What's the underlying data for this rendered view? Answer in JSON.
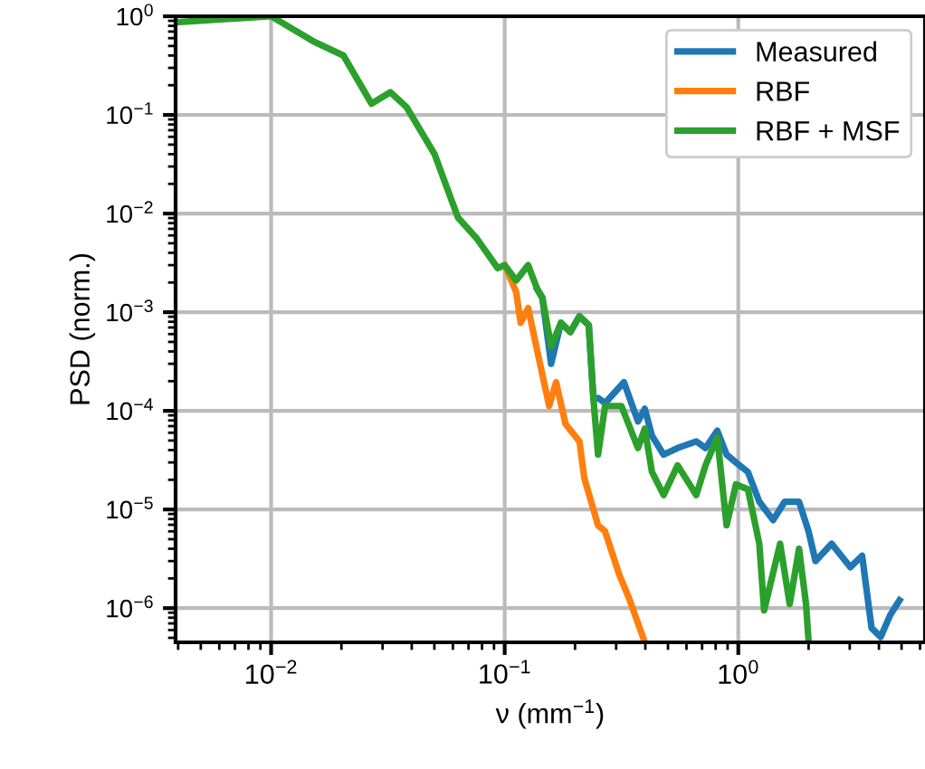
{
  "chart_data": {
    "type": "line",
    "xlabel": "ν (mm$^{−1}$)",
    "ylabel": "PSD (norm.)",
    "log": "xy",
    "grid": true,
    "legend": "top right",
    "xlim": [
      0.0039,
      6.3
    ],
    "ylim": [
      4.5e-07,
      1
    ],
    "xticks": [
      {
        "value": 0.01,
        "label": "10$^{−2}$"
      },
      {
        "value": 0.1,
        "label": "10$^{−1}$"
      },
      {
        "value": 1,
        "label": "10$^{0}$"
      }
    ],
    "yticks": [
      {
        "value": 1e-06,
        "label": "10$^{−6}$"
      },
      {
        "value": 1e-05,
        "label": "10$^{−5}$"
      },
      {
        "value": 0.0001,
        "label": "10$^{−4}$"
      },
      {
        "value": 0.001,
        "label": "10$^{−3}$"
      },
      {
        "value": 0.01,
        "label": "10$^{−2}$"
      },
      {
        "value": 0.1,
        "label": "10$^{−1}$"
      },
      {
        "value": 1,
        "label": "10$^{0}$"
      }
    ],
    "series": [
      {
        "name": "Measured",
        "color": "#1f77b4",
        "x": [
          0.138,
          0.145,
          0.158,
          0.174,
          0.191,
          0.209,
          0.229,
          0.24,
          0.251,
          0.269,
          0.324,
          0.372,
          0.398,
          0.427,
          0.479,
          0.55,
          0.661,
          0.724,
          0.813,
          0.891,
          0.977,
          1.1,
          1.23,
          1.41,
          1.58,
          1.82,
          2.0,
          2.14,
          2.51,
          3.02,
          3.39,
          3.72,
          4.07,
          4.47,
          4.9
        ],
        "values": [
          0.0017,
          0.0014,
          0.0003,
          0.00078,
          0.00063,
          0.00091,
          0.00074,
          0.00013,
          0.000135,
          0.00012,
          0.000195,
          7.8e-05,
          0.000105,
          5.6e-05,
          3.6e-05,
          4.2e-05,
          4.9e-05,
          4.2e-05,
          6.3e-05,
          3.6e-05,
          3e-05,
          2.4e-05,
          1.2e-05,
          7.8e-06,
          1.2e-05,
          1.2e-05,
          6e-06,
          3e-06,
          4.5e-06,
          2.6e-06,
          3.4e-06,
          6.3e-07,
          5.1e-07,
          8.5e-07,
          1.2e-06
        ]
      },
      {
        "name": "RBF",
        "color": "#ff7f0e",
        "x": [
          0.1,
          0.112,
          0.117,
          0.126,
          0.138,
          0.155,
          0.166,
          0.182,
          0.209,
          0.219,
          0.251,
          0.269,
          0.309,
          0.339,
          0.398
        ],
        "values": [
          0.003,
          0.0016,
          0.00078,
          0.0011,
          0.0004,
          0.000112,
          0.000195,
          7.4e-05,
          4.9e-05,
          2.1e-05,
          6.9e-06,
          6e-06,
          2.2e-06,
          1.3e-06,
          4.5e-07
        ]
      },
      {
        "name": "RBF + MSF",
        "color": "#2ca02c",
        "x": [
          0.0039,
          0.01,
          0.0151,
          0.0204,
          0.0269,
          0.0324,
          0.038,
          0.0501,
          0.0631,
          0.0759,
          0.0933,
          0.1,
          0.112,
          0.126,
          0.138,
          0.145,
          0.158,
          0.174,
          0.191,
          0.209,
          0.229,
          0.24,
          0.251,
          0.269,
          0.316,
          0.372,
          0.398,
          0.427,
          0.479,
          0.55,
          0.661,
          0.724,
          0.813,
          0.891,
          0.977,
          1.1,
          1.23,
          1.29,
          1.51,
          1.66,
          1.82,
          1.95,
          2.0
        ],
        "values": [
          0.87,
          1,
          0.56,
          0.4,
          0.13,
          0.17,
          0.12,
          0.04,
          0.0091,
          0.0056,
          0.0028,
          0.003,
          0.0021,
          0.003,
          0.0017,
          0.0014,
          0.00045,
          0.00078,
          0.00063,
          0.00091,
          0.00074,
          0.00013,
          3.6e-05,
          0.000112,
          0.000112,
          4.2e-05,
          6.6e-05,
          2.4e-05,
          1.4e-05,
          2.8e-05,
          1.4e-05,
          2.8e-05,
          5.4e-05,
          6.9e-06,
          1.8e-05,
          1.6e-05,
          4.5e-06,
          9.5e-07,
          4.5e-06,
          1.1e-06,
          4e-06,
          1.1e-06,
          4.6e-07
        ]
      }
    ]
  }
}
